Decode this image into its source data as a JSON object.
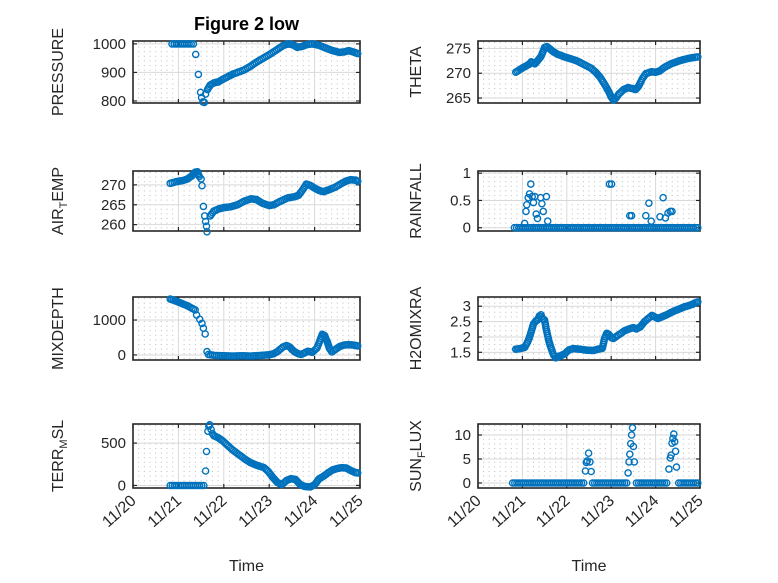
{
  "figure": {
    "title": "Figure 2 low",
    "background": "#ffffff",
    "marker_color": "#0072BD",
    "axes_color": "#262626",
    "grid_color": "#d9d9d9",
    "minor_grid_color": "#bdbdbd",
    "text_color": "#262626",
    "title_color": "#000000"
  },
  "x_axis": {
    "label": "Time",
    "xlim": [
      0,
      5
    ],
    "xticks": [
      0,
      1,
      2,
      3,
      4,
      5
    ],
    "xtick_labels": [
      "11/20",
      "11/21",
      "11/22",
      "11/23",
      "11/24",
      "11/25"
    ],
    "minor_step": 0.125
  },
  "chart_data": [
    {
      "type": "scatter",
      "name": "pressure",
      "row": 0,
      "col": 0,
      "ylabel_parts": [
        {
          "t": "PRESSURE",
          "sub": false
        }
      ],
      "ylim": [
        793,
        1010
      ],
      "yticks": [
        800,
        900,
        1000
      ],
      "ytick_labels": [
        "800",
        "900",
        "1000"
      ],
      "segments": [
        {
          "x": [
            0.86,
            1.33
          ],
          "y": [
            1000,
            1000
          ]
        },
        {
          "x": [
            1.64,
            1.7,
            1.78,
            1.88,
            1.98,
            2.1,
            2.2,
            2.32,
            2.45,
            2.6,
            2.75,
            2.9,
            3.05,
            3.2,
            3.32,
            3.42,
            3.52,
            3.62,
            3.72,
            3.82,
            3.95,
            4.1,
            4.25,
            4.4,
            4.55,
            4.65,
            4.75,
            4.85,
            4.95
          ],
          "y": [
            840,
            856,
            863,
            867,
            876,
            886,
            894,
            901,
            909,
            923,
            939,
            953,
            967,
            983,
            995,
            1000,
            997,
            988,
            991,
            997,
            1000,
            995,
            985,
            976,
            970,
            972,
            976,
            972,
            966
          ]
        }
      ],
      "points": [
        [
          1.38,
          963
        ],
        [
          1.44,
          893
        ],
        [
          1.49,
          830
        ],
        [
          1.51,
          812
        ],
        [
          1.54,
          797
        ],
        [
          1.57,
          795
        ],
        [
          1.6,
          824
        ]
      ]
    },
    {
      "type": "scatter",
      "name": "theta",
      "row": 0,
      "col": 1,
      "ylabel_parts": [
        {
          "t": "THETA",
          "sub": false
        }
      ],
      "ylim": [
        264,
        276.5
      ],
      "yticks": [
        265,
        270,
        275
      ],
      "ytick_labels": [
        "265",
        "270",
        "275"
      ],
      "segments": [
        {
          "x": [
            0.85,
            0.95,
            1.05,
            1.15,
            1.2,
            1.28,
            1.35,
            1.42,
            1.5,
            1.55,
            1.62,
            1.7,
            1.8,
            1.95,
            2.1,
            2.25,
            2.4,
            2.55,
            2.65,
            2.75,
            2.85,
            2.95,
            3.0,
            3.05,
            3.1,
            3.18,
            3.28,
            3.38,
            3.48,
            3.55,
            3.62,
            3.7,
            3.78,
            3.9,
            4.0,
            4.1,
            4.2,
            4.35,
            4.5,
            4.65,
            4.8,
            4.95
          ],
          "y": [
            270.2,
            270.8,
            271.3,
            271.8,
            272.3,
            271.9,
            272.6,
            273.4,
            275.2,
            275.4,
            274.9,
            274.3,
            273.8,
            273.3,
            272.9,
            272.4,
            271.7,
            271.0,
            270.2,
            269.2,
            267.8,
            266.2,
            265.2,
            264.6,
            264.9,
            265.9,
            266.7,
            267.1,
            266.9,
            266.7,
            267.4,
            268.9,
            269.9,
            270.3,
            270.2,
            270.5,
            271.2,
            271.9,
            272.4,
            272.8,
            273.1,
            273.3
          ]
        }
      ],
      "points": []
    },
    {
      "type": "scatter",
      "name": "air-temp",
      "row": 1,
      "col": 0,
      "ylabel_parts": [
        {
          "t": "AIR",
          "sub": false
        },
        {
          "t": "T",
          "sub": true
        },
        {
          "t": "EMP",
          "sub": false
        }
      ],
      "ylim": [
        258.4,
        273.5
      ],
      "yticks": [
        260,
        265,
        270
      ],
      "ytick_labels": [
        "260",
        "265",
        "270"
      ],
      "segments": [
        {
          "x": [
            0.82,
            0.95,
            1.1,
            1.2,
            1.3,
            1.37,
            1.42,
            1.46
          ],
          "y": [
            270.4,
            270.8,
            271.1,
            271.5,
            272.3,
            273.2,
            273.3,
            272.1
          ]
        },
        {
          "x": [
            1.7,
            1.78,
            1.9,
            2.0,
            2.15,
            2.3,
            2.45,
            2.6,
            2.72,
            2.85,
            3.0,
            3.1,
            3.25,
            3.4,
            3.55,
            3.65,
            3.75,
            3.82,
            3.9,
            4.0,
            4.1,
            4.2,
            4.3,
            4.45,
            4.6,
            4.7,
            4.8,
            4.9,
            4.95
          ],
          "y": [
            262.2,
            263.4,
            264.0,
            264.3,
            264.5,
            265.0,
            265.9,
            266.5,
            266.3,
            265.4,
            264.8,
            265.0,
            265.9,
            266.7,
            267.0,
            267.4,
            269.0,
            270.2,
            269.9,
            269.2,
            268.6,
            268.3,
            268.7,
            269.4,
            270.4,
            271.0,
            271.3,
            271.2,
            270.9
          ]
        }
      ],
      "points": [
        [
          1.5,
          271.5
        ],
        [
          1.52,
          269.8
        ],
        [
          1.55,
          264.6
        ],
        [
          1.58,
          262.2
        ],
        [
          1.6,
          260.8
        ],
        [
          1.62,
          259.6
        ],
        [
          1.63,
          258.2
        ]
      ]
    },
    {
      "type": "scatter",
      "name": "rainfall",
      "row": 1,
      "col": 1,
      "ylabel_parts": [
        {
          "t": "RAINFALL",
          "sub": false
        }
      ],
      "ylim": [
        -0.06,
        1.04
      ],
      "yticks": [
        0,
        0.5,
        1
      ],
      "ytick_labels": [
        "0",
        "0.5",
        "1"
      ],
      "segments": [
        {
          "x": [
            0.82,
            4.95
          ],
          "y": [
            0,
            0
          ]
        }
      ],
      "points": [
        [
          1.05,
          0.08
        ],
        [
          1.08,
          0.3
        ],
        [
          1.1,
          0.42
        ],
        [
          1.13,
          0.55
        ],
        [
          1.16,
          0.62
        ],
        [
          1.19,
          0.8
        ],
        [
          1.22,
          0.57
        ],
        [
          1.25,
          0.46
        ],
        [
          1.28,
          0.57
        ],
        [
          1.31,
          0.25
        ],
        [
          1.34,
          0.17
        ],
        [
          1.41,
          0.55
        ],
        [
          1.44,
          0.44
        ],
        [
          1.47,
          0.3
        ],
        [
          1.54,
          0.57
        ],
        [
          1.57,
          0.12
        ],
        [
          2.96,
          0.8
        ],
        [
          3.01,
          0.8
        ],
        [
          3.42,
          0.22
        ],
        [
          3.46,
          0.22
        ],
        [
          3.78,
          0.22
        ],
        [
          3.85,
          0.45
        ],
        [
          3.9,
          0.12
        ],
        [
          4.1,
          0.2
        ],
        [
          4.17,
          0.55
        ],
        [
          4.22,
          0.18
        ],
        [
          4.28,
          0.27
        ],
        [
          4.33,
          0.3
        ],
        [
          4.37,
          0.3
        ]
      ]
    },
    {
      "type": "scatter",
      "name": "mixdepth",
      "row": 2,
      "col": 0,
      "ylabel_parts": [
        {
          "t": "MIXDEPTH",
          "sub": false
        }
      ],
      "ylim": [
        -145,
        1660
      ],
      "yticks": [
        0,
        1000
      ],
      "ytick_labels": [
        "0",
        "1000"
      ],
      "segments": [
        {
          "x": [
            0.82,
            0.92,
            1.02,
            1.12,
            1.22,
            1.3,
            1.37
          ],
          "y": [
            1600,
            1555,
            1505,
            1450,
            1395,
            1335,
            1290
          ]
        },
        {
          "x": [
            1.66,
            1.8,
            2.0,
            2.2,
            2.4,
            2.6,
            2.8,
            3.0,
            3.1,
            3.2,
            3.3,
            3.38,
            3.45,
            3.5,
            3.56,
            3.63,
            3.7,
            3.78,
            3.85,
            3.95,
            4.05,
            4.12,
            4.17,
            4.22,
            4.28,
            4.33,
            4.38,
            4.45,
            4.55,
            4.65,
            4.75,
            4.85,
            4.95
          ],
          "y": [
            15,
            -15,
            -25,
            -30,
            -25,
            -30,
            -15,
            5,
            35,
            115,
            225,
            270,
            230,
            160,
            90,
            40,
            15,
            55,
            105,
            75,
            195,
            420,
            590,
            555,
            375,
            180,
            85,
            150,
            240,
            285,
            295,
            285,
            260
          ]
        }
      ],
      "points": [
        [
          1.4,
          1140
        ],
        [
          1.47,
          1020
        ],
        [
          1.52,
          905
        ],
        [
          1.55,
          765
        ],
        [
          1.59,
          600
        ],
        [
          1.63,
          95
        ]
      ]
    },
    {
      "type": "scatter",
      "name": "h2omixra",
      "row": 2,
      "col": 1,
      "ylabel_parts": [
        {
          "t": "H2OMIXRA",
          "sub": false
        }
      ],
      "ylim": [
        1.25,
        3.3
      ],
      "yticks": [
        1.5,
        2,
        2.5,
        3
      ],
      "ytick_labels": [
        "1.5",
        "2",
        "2.5",
        "3"
      ],
      "segments": [
        {
          "x": [
            0.85,
            0.95,
            1.05,
            1.1,
            1.15,
            1.2,
            1.25,
            1.3,
            1.35,
            1.38,
            1.42,
            1.45,
            1.5,
            1.53,
            1.56,
            1.6,
            1.65,
            1.7,
            1.75,
            1.8,
            1.85,
            1.95,
            2.05,
            2.15,
            2.3,
            2.45,
            2.6,
            2.7,
            2.8,
            2.85,
            2.9,
            2.95,
            3.0,
            3.05,
            3.12,
            3.2,
            3.3,
            3.4,
            3.5,
            3.57,
            3.65,
            3.75,
            3.85,
            3.92,
            3.97,
            4.05,
            4.15,
            4.25,
            4.35,
            4.45,
            4.55,
            4.65,
            4.75,
            4.85,
            4.95
          ],
          "y": [
            1.6,
            1.62,
            1.66,
            1.78,
            1.95,
            2.18,
            2.42,
            2.52,
            2.56,
            2.68,
            2.72,
            2.6,
            2.55,
            2.3,
            2.1,
            1.85,
            1.62,
            1.42,
            1.32,
            1.36,
            1.38,
            1.45,
            1.58,
            1.62,
            1.6,
            1.57,
            1.56,
            1.6,
            1.63,
            1.95,
            2.12,
            2.08,
            1.98,
            1.95,
            2.02,
            2.1,
            2.2,
            2.26,
            2.3,
            2.26,
            2.32,
            2.5,
            2.62,
            2.7,
            2.66,
            2.6,
            2.66,
            2.72,
            2.8,
            2.86,
            2.92,
            2.98,
            3.02,
            3.08,
            3.14
          ]
        }
      ],
      "points": []
    },
    {
      "type": "scatter",
      "name": "terr-msl",
      "row": 3,
      "col": 0,
      "ylabel_parts": [
        {
          "t": "TERR",
          "sub": false
        },
        {
          "t": "M",
          "sub": true
        },
        {
          "t": "SL",
          "sub": false
        }
      ],
      "ylim": [
        -30,
        725
      ],
      "yticks": [
        0,
        500
      ],
      "ytick_labels": [
        "0",
        "500"
      ],
      "segments": [
        {
          "x": [
            0.82,
            1.56
          ],
          "y": [
            0,
            0
          ]
        },
        {
          "x": [
            1.78,
            1.88,
            1.98,
            2.08,
            2.18,
            2.28,
            2.38,
            2.48,
            2.58,
            2.68,
            2.78,
            2.88,
            2.98,
            3.08,
            3.18,
            3.28,
            3.38,
            3.48,
            3.58,
            3.68,
            3.78,
            3.9,
            4.0,
            4.1,
            4.2,
            4.3,
            4.4,
            4.5,
            4.6,
            4.7,
            4.8,
            4.9,
            4.95
          ],
          "y": [
            588,
            562,
            525,
            475,
            425,
            385,
            345,
            305,
            272,
            248,
            228,
            212,
            165,
            95,
            35,
            10,
            58,
            80,
            70,
            12,
            -12,
            -18,
            8,
            78,
            110,
            150,
            185,
            200,
            210,
            205,
            175,
            152,
            148
          ]
        }
      ],
      "points": [
        [
          1.6,
          170
        ],
        [
          1.62,
          400
        ],
        [
          1.65,
          640
        ],
        [
          1.67,
          700
        ],
        [
          1.69,
          715
        ],
        [
          1.72,
          660
        ],
        [
          1.75,
          612
        ]
      ]
    },
    {
      "type": "scatter",
      "name": "sun-flux",
      "row": 3,
      "col": 1,
      "ylabel_parts": [
        {
          "t": "SUN",
          "sub": false
        },
        {
          "t": "F",
          "sub": true
        },
        {
          "t": "LUX",
          "sub": false
        }
      ],
      "ylim": [
        -1.05,
        12.3
      ],
      "yticks": [
        0,
        5,
        10
      ],
      "ytick_labels": [
        "0",
        "5",
        "10"
      ],
      "segments": [
        {
          "x": [
            0.78,
            2.38
          ],
          "y": [
            0,
            0
          ]
        },
        {
          "x": [
            2.58,
            3.35
          ],
          "y": [
            0,
            0
          ]
        },
        {
          "x": [
            3.57,
            4.25
          ],
          "y": [
            0,
            0
          ]
        },
        {
          "x": [
            4.52,
            4.95
          ],
          "y": [
            0,
            0
          ]
        }
      ],
      "points": [
        [
          2.42,
          2.5
        ],
        [
          2.44,
          4.3
        ],
        [
          2.46,
          4.6
        ],
        [
          2.49,
          6.2
        ],
        [
          2.52,
          4.4
        ],
        [
          2.55,
          2.4
        ],
        [
          3.38,
          2.1
        ],
        [
          3.4,
          4.4
        ],
        [
          3.42,
          6.0
        ],
        [
          3.44,
          8.2
        ],
        [
          3.46,
          10.0
        ],
        [
          3.48,
          11.5
        ],
        [
          3.5,
          7.6
        ],
        [
          3.52,
          4.4
        ],
        [
          4.3,
          2.9
        ],
        [
          4.33,
          5.2
        ],
        [
          4.35,
          5.8
        ],
        [
          4.37,
          8.3
        ],
        [
          4.39,
          9.3
        ],
        [
          4.41,
          10.2
        ],
        [
          4.43,
          8.6
        ],
        [
          4.45,
          6.6
        ],
        [
          4.47,
          3.3
        ]
      ]
    }
  ]
}
